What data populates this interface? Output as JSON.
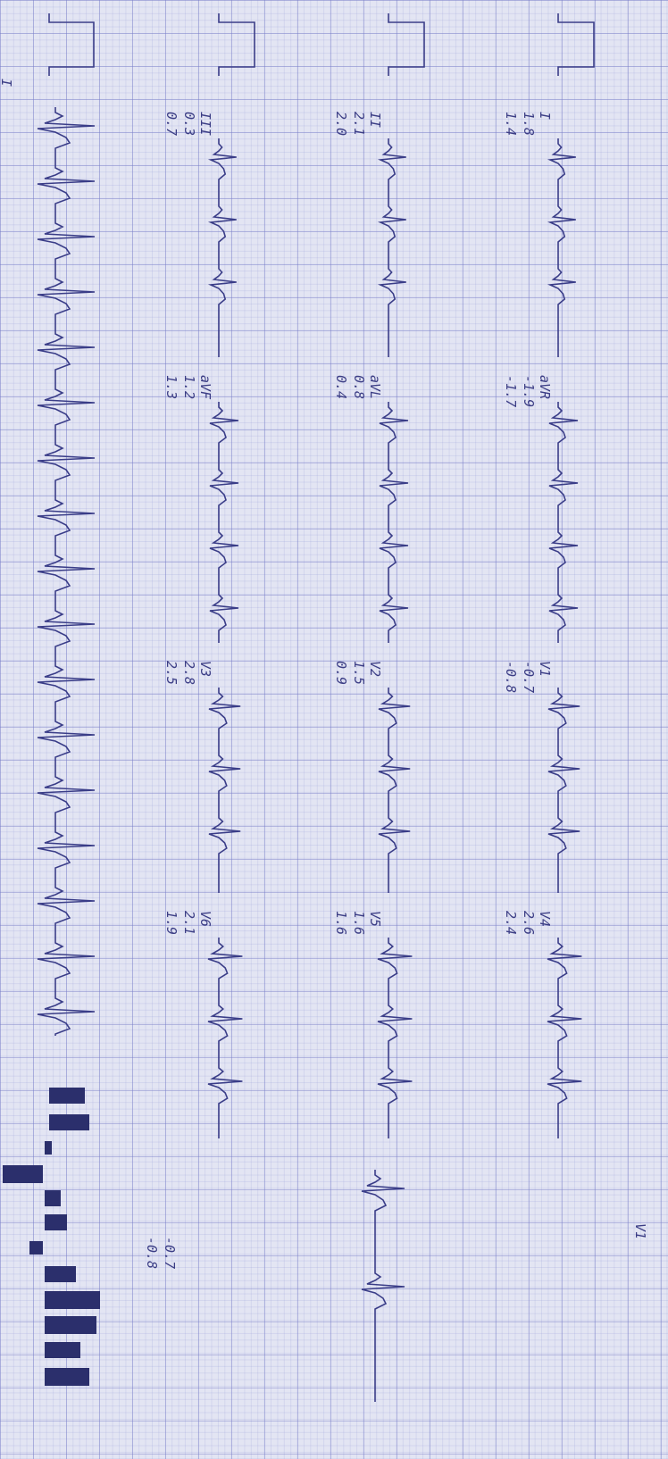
{
  "rows": [
    {
      "leads": [
        {
          "label": "I",
          "values": [
            "1.8",
            "1.4"
          ]
        },
        {
          "label": "aVR",
          "values": [
            "-1.9",
            "-1.7"
          ]
        },
        {
          "label": "V1",
          "values": [
            "-0.7",
            "-0.8"
          ]
        },
        {
          "label": "V4",
          "values": [
            "2.6",
            "2.4"
          ]
        }
      ]
    },
    {
      "leads": [
        {
          "label": "II",
          "values": [
            "2.1",
            "2.0"
          ]
        },
        {
          "label": "aVL",
          "values": [
            "0.8",
            "0.4"
          ]
        },
        {
          "label": "V2",
          "values": [
            "1.5",
            "0.9"
          ]
        },
        {
          "label": "V5",
          "values": [
            "1.6",
            "1.6"
          ]
        }
      ]
    },
    {
      "leads": [
        {
          "label": "III",
          "values": [
            "0.3",
            "0.7"
          ]
        },
        {
          "label": "aVF",
          "values": [
            "1.2",
            "1.3"
          ]
        },
        {
          "label": "V3",
          "values": [
            "2.8",
            "2.5"
          ]
        },
        {
          "label": "V6",
          "values": [
            "2.1",
            "1.9"
          ]
        }
      ]
    }
  ],
  "rhythm_label": "I",
  "extra": {
    "label": "V1",
    "values": [
      "-0.7",
      "-0.8"
    ]
  }
}
